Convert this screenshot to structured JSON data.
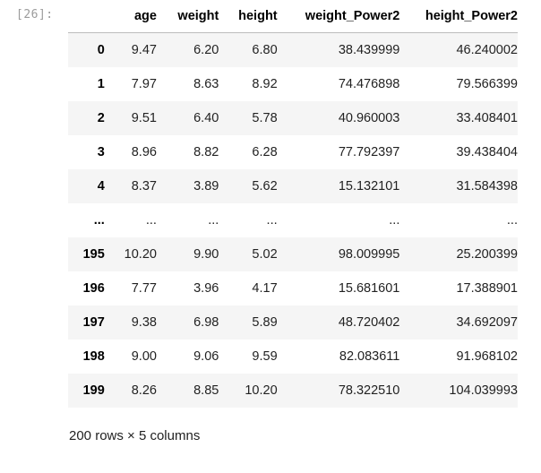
{
  "cell": {
    "prompt": "[26]:"
  },
  "table": {
    "columns": [
      "age",
      "weight",
      "height",
      "weight_Power2",
      "height_Power2"
    ],
    "rows": [
      {
        "index": "0",
        "cells": [
          "9.47",
          "6.20",
          "6.80",
          "38.439999",
          "46.240002"
        ]
      },
      {
        "index": "1",
        "cells": [
          "7.97",
          "8.63",
          "8.92",
          "74.476898",
          "79.566399"
        ]
      },
      {
        "index": "2",
        "cells": [
          "9.51",
          "6.40",
          "5.78",
          "40.960003",
          "33.408401"
        ]
      },
      {
        "index": "3",
        "cells": [
          "8.96",
          "8.82",
          "6.28",
          "77.792397",
          "39.438404"
        ]
      },
      {
        "index": "4",
        "cells": [
          "8.37",
          "3.89",
          "5.62",
          "15.132101",
          "31.584398"
        ]
      },
      {
        "index": "...",
        "cells": [
          "...",
          "...",
          "...",
          "...",
          "..."
        ]
      },
      {
        "index": "195",
        "cells": [
          "10.20",
          "9.90",
          "5.02",
          "98.009995",
          "25.200399"
        ]
      },
      {
        "index": "196",
        "cells": [
          "7.77",
          "3.96",
          "4.17",
          "15.681601",
          "17.388901"
        ]
      },
      {
        "index": "197",
        "cells": [
          "9.38",
          "6.98",
          "5.89",
          "48.720402",
          "34.692097"
        ]
      },
      {
        "index": "198",
        "cells": [
          "9.00",
          "9.06",
          "9.59",
          "82.083611",
          "91.968102"
        ]
      },
      {
        "index": "199",
        "cells": [
          "8.26",
          "8.85",
          "10.20",
          "78.322510",
          "104.039993"
        ]
      }
    ]
  },
  "footer": {
    "shape": "200 rows × 5 columns"
  }
}
